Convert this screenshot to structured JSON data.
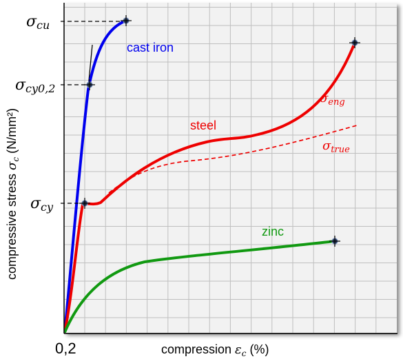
{
  "chart_data": {
    "type": "line",
    "title": "",
    "xlabel": {
      "prefix": "compression ",
      "symbol": "ε",
      "subscript": "c",
      "suffix": " (%)"
    },
    "ylabel": {
      "prefix": "compressive stress ",
      "symbol": "σ",
      "subscript": "c",
      "suffix": " (N/mm²)"
    },
    "x_tick_label": "0,2",
    "grid": true,
    "colors": {
      "cast_iron": "#0000ee",
      "steel": "#ee0000",
      "zinc": "#119911",
      "grid": "#bfbfbf",
      "plot_bg": "#f2f2f2",
      "marker": "#2a3a5a"
    },
    "series": [
      {
        "name": "cast iron",
        "color_key": "cast_iron",
        "style": "solid"
      },
      {
        "name": "steel",
        "color_key": "steel",
        "style": "solid"
      },
      {
        "name": "steel",
        "color_key": "steel",
        "style": "dashed"
      },
      {
        "name": "zinc",
        "color_key": "zinc",
        "style": "solid"
      }
    ],
    "y_markers": [
      {
        "symbol": "σ",
        "sub": "cu"
      },
      {
        "symbol": "σ",
        "sub": "cy0,2"
      },
      {
        "symbol": "σ",
        "sub": "cy"
      }
    ],
    "annotations": [
      {
        "symbol": "σ",
        "sub": "eng"
      },
      {
        "symbol": "σ",
        "sub": "true"
      }
    ]
  }
}
